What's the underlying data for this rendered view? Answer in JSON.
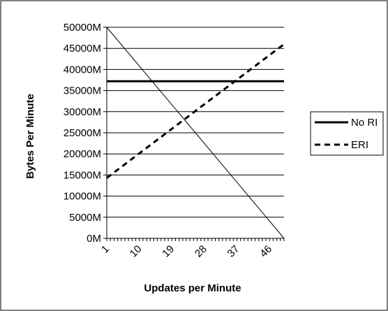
{
  "chart_data": {
    "type": "line",
    "title": "",
    "xlabel": "Updates per Minute",
    "ylabel": "Bytes Per Minute",
    "x_tick_labels": [
      "1",
      "10",
      "19",
      "28",
      "37",
      "46"
    ],
    "y_tick_labels": [
      "0M",
      "5000M",
      "10000M",
      "15000M",
      "20000M",
      "25000M",
      "30000M",
      "35000M",
      "40000M",
      "45000M",
      "50000M"
    ],
    "x_range": [
      1,
      50
    ],
    "ylim": [
      0,
      50000
    ],
    "y_unit": "M",
    "grid": "horizontal",
    "legend_position": "right",
    "series": [
      {
        "name": "No RI",
        "style": "solid-thick",
        "x": [
          1,
          50
        ],
        "y": [
          37200,
          37200
        ]
      },
      {
        "name": "ERI",
        "style": "dashed",
        "x": [
          1,
          50
        ],
        "y": [
          14300,
          46000
        ]
      },
      {
        "style": "solid-thin",
        "x": [
          1,
          50
        ],
        "y": [
          50000,
          0
        ]
      }
    ]
  }
}
